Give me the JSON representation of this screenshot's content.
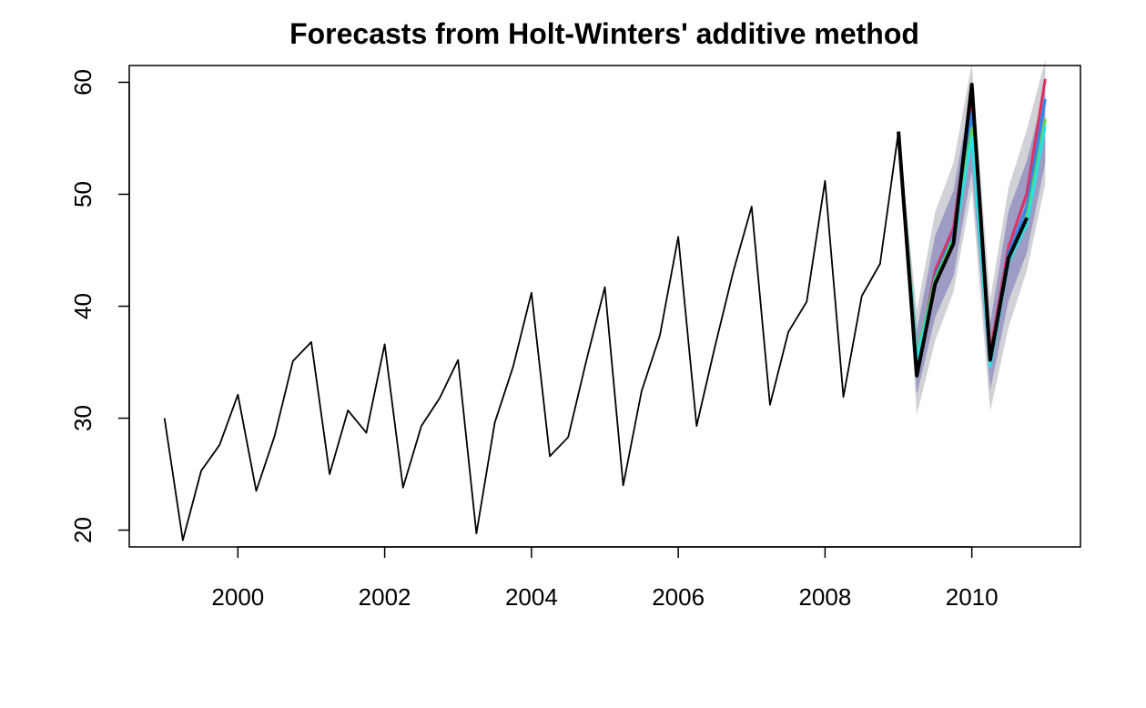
{
  "chart_data": {
    "type": "line",
    "title": "Forecasts from Holt-Winters' additive method",
    "xlabel": "",
    "ylabel": "",
    "xlim": [
      1998.52,
      2011.48
    ],
    "ylim": [
      18.5,
      61.5
    ],
    "x_ticks": [
      2000,
      2002,
      2004,
      2006,
      2008,
      2010
    ],
    "x_tick_labels": [
      "2000",
      "2002",
      "2004",
      "2006",
      "2008",
      "2010"
    ],
    "y_ticks": [
      20,
      30,
      40,
      50,
      60
    ],
    "y_tick_labels": [
      "20",
      "30",
      "40",
      "50",
      "60"
    ],
    "grid": false,
    "legend": "none",
    "history": {
      "x": [
        1999.0,
        1999.25,
        1999.5,
        1999.75,
        2000.0,
        2000.25,
        2000.5,
        2000.75,
        2001.0,
        2001.25,
        2001.5,
        2001.75,
        2002.0,
        2002.25,
        2002.5,
        2002.75,
        2003.0,
        2003.25,
        2003.5,
        2003.75,
        2004.0,
        2004.25,
        2004.5,
        2004.75,
        2005.0,
        2005.25,
        2005.5,
        2005.75,
        2006.0,
        2006.25,
        2006.5,
        2006.75,
        2007.0,
        2007.25,
        2007.5,
        2007.75,
        2008.0,
        2008.25,
        2008.5,
        2008.75,
        2009.0
      ],
      "y": [
        30.0,
        19.1,
        25.3,
        27.6,
        32.1,
        23.5,
        28.4,
        35.1,
        36.8,
        25.0,
        30.7,
        28.7,
        36.6,
        23.8,
        29.3,
        31.8,
        35.2,
        19.7,
        29.6,
        34.6,
        41.2,
        26.6,
        28.3,
        35.2,
        41.7,
        24.0,
        32.4,
        37.4,
        46.2,
        29.3,
        36.4,
        43.1,
        48.9,
        31.2,
        37.7,
        40.4,
        51.2,
        31.9,
        40.9,
        43.8,
        55.6
      ],
      "color": "#000000"
    },
    "forecast_x": [
      2009.0,
      2009.25,
      2009.5,
      2009.75,
      2010.0,
      2010.25,
      2010.5,
      2010.75,
      2011.0
    ],
    "band95": {
      "upper": [
        55.6,
        39.6,
        48.4,
        52.8,
        61.7,
        40.6,
        50.6,
        55.8,
        62.0
      ],
      "lower": [
        55.6,
        30.3,
        36.9,
        41.3,
        50.3,
        30.6,
        38.1,
        43.2,
        50.9
      ],
      "color": "#d1d1d8"
    },
    "band80": {
      "upper": [
        55.6,
        37.8,
        46.3,
        50.3,
        59.6,
        38.5,
        48.5,
        53.0,
        59.5
      ],
      "lower": [
        55.6,
        32.1,
        39.0,
        42.7,
        52.1,
        32.5,
        40.5,
        44.8,
        52.8
      ],
      "color": "#9c9cc4"
    },
    "series": [
      {
        "name": "",
        "color": "#df2f61",
        "y": [
          55.6,
          34.6,
          43.2,
          47.0,
          58.6,
          35.9,
          45.3,
          50.1,
          60.3
        ]
      },
      {
        "name": "",
        "color": "#2f86e8",
        "y": [
          55.6,
          34.8,
          42.7,
          46.4,
          57.2,
          35.4,
          44.7,
          48.9,
          58.5
        ]
      },
      {
        "name": "",
        "color": "#61d04f",
        "y": [
          55.6,
          35.6,
          42.4,
          46.1,
          55.9,
          35.1,
          44.2,
          48.0,
          56.7
        ]
      },
      {
        "name": "",
        "color": "#28e2e5",
        "y": [
          55.6,
          35.3,
          42.0,
          45.5,
          55.1,
          34.6,
          43.9,
          47.3,
          56.1
        ]
      }
    ],
    "actual": {
      "x": [
        2009.0,
        2009.25,
        2009.5,
        2009.75,
        2010.0,
        2010.25,
        2010.5,
        2010.75
      ],
      "y": [
        55.6,
        33.8,
        42.0,
        45.6,
        59.8,
        35.2,
        44.3,
        47.9
      ],
      "color": "#000000"
    }
  }
}
